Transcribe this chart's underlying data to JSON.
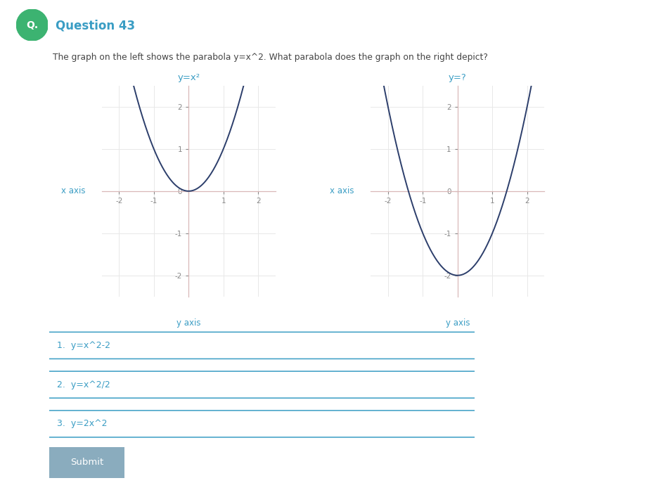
{
  "bg_color": "#ffffff",
  "question_number": "Question 43",
  "question_color": "#3a9dc4",
  "question_text": "The graph on the left shows the parabola y=x^2. What parabola does the graph on the right depict?",
  "question_text_color": "#444444",
  "circle_color": "#3cb371",
  "circle_letter": "Q.",
  "left_title": "y=x²",
  "right_title": "y=?",
  "title_color": "#3a9dc4",
  "tick_label_color": "#888888",
  "x_axis_label": "x axis",
  "y_axis_label": "y axis",
  "xlim": [
    -2.5,
    2.5
  ],
  "ylim": [
    -2.5,
    2.5
  ],
  "xticks": [
    -2,
    -1,
    0,
    1,
    2
  ],
  "yticks": [
    -2,
    -1,
    0,
    1,
    2
  ],
  "curve_color": "#2c3e6b",
  "curve_linewidth": 1.4,
  "grid_color": "#e8e8e8",
  "haxis_color": "#d9b8b8",
  "vaxis_color": "#d9b8b8",
  "box_color": "#e0e0e0",
  "options": [
    "1.  y=x^2-2",
    "2.  y=x^2/2",
    "3.  y=2x^2"
  ],
  "option_text_color": "#3a9dc4",
  "option_border_color": "#3a9dc4",
  "submit_bg": "#8aacbe",
  "submit_text": "Submit",
  "submit_text_color": "#ffffff",
  "tick_fontsize": 7.5,
  "title_fontsize": 9.5,
  "axis_label_fontsize": 8.5,
  "label_color": "#3a9dc4"
}
